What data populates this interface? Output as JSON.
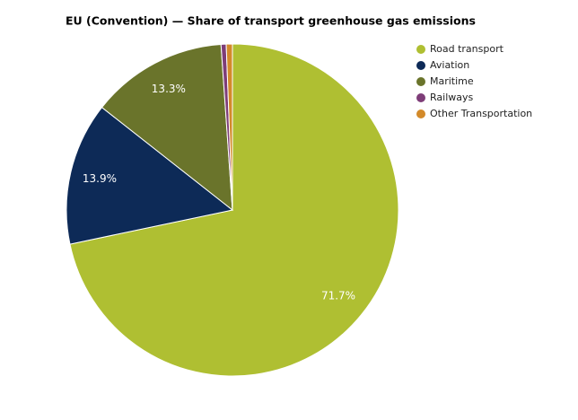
{
  "chart_data": {
    "type": "pie",
    "title": "EU (Convention) — Share of transport greenhouse gas emissions",
    "categories": [
      "Road transport",
      "Aviation",
      "Maritime",
      "Railways",
      "Other Transportation"
    ],
    "values": [
      71.7,
      13.9,
      13.3,
      0.5,
      0.6
    ],
    "value_labels": [
      "71.7%",
      "13.9%",
      "13.3%",
      null,
      null
    ],
    "colors": [
      "#afbf32",
      "#0d2a57",
      "#6a742b",
      "#7e3d78",
      "#d38a2a"
    ],
    "legend": "top-right"
  }
}
